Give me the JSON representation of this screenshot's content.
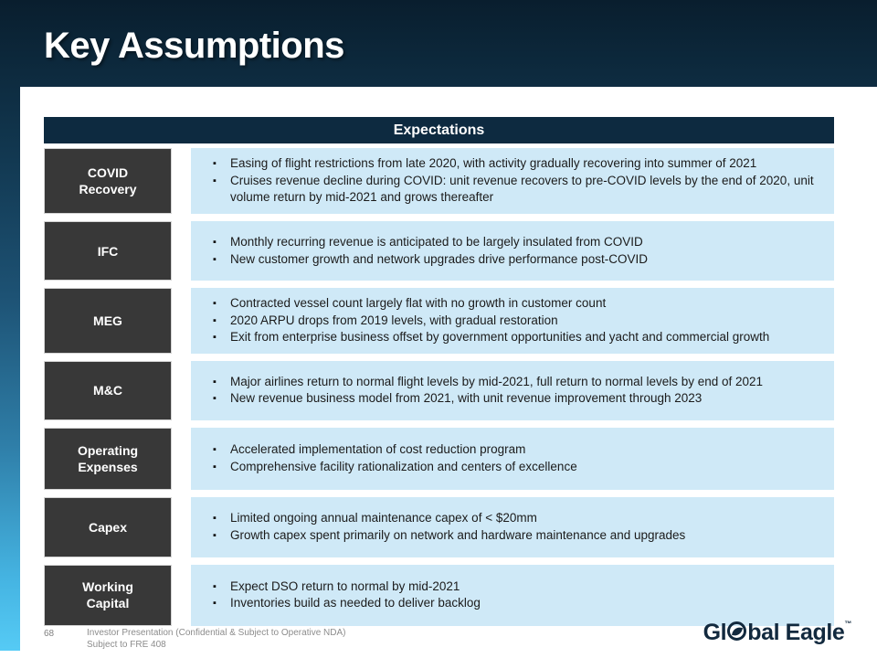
{
  "slide": {
    "title": "Key Assumptions"
  },
  "table": {
    "header": "Expectations",
    "rows": [
      {
        "label": "COVID Recovery",
        "bullets": [
          "Easing of flight restrictions from late 2020, with activity gradually recovering into summer of 2021",
          "Cruises revenue decline during COVID: unit revenue recovers to pre-COVID levels by the end of 2020, unit volume return by mid-2021 and grows thereafter"
        ]
      },
      {
        "label": "IFC",
        "bullets": [
          "Monthly recurring revenue is anticipated to be largely insulated from COVID",
          "New customer growth and network upgrades drive performance post-COVID"
        ]
      },
      {
        "label": "MEG",
        "bullets": [
          "Contracted vessel count largely flat with no growth in customer count",
          "2020 ARPU drops from 2019 levels, with gradual restoration",
          "Exit from enterprise business offset by government opportunities and yacht and commercial growth"
        ]
      },
      {
        "label": "M&C",
        "bullets": [
          "Major airlines return to normal flight levels by mid-2021, full return to normal levels by end of 2021",
          "New revenue business model from 2021, with unit revenue improvement through 2023"
        ]
      },
      {
        "label": "Operating Expenses",
        "bullets": [
          "Accelerated implementation of cost reduction program",
          "Comprehensive facility rationalization and centers of excellence"
        ]
      },
      {
        "label": "Capex",
        "bullets": [
          "Limited ongoing annual maintenance capex of < $20mm",
          "Growth capex spent primarily on network and hardware maintenance and upgrades"
        ]
      },
      {
        "label": "Working Capital",
        "bullets": [
          "Expect DSO return to normal by mid-2021",
          "Inventories build as needed to deliver backlog"
        ]
      }
    ]
  },
  "footer": {
    "page_number": "68",
    "disclaimer_line1": "Investor Presentation (Confidential & Subject to Operative NDA)",
    "disclaimer_line2": "Subject to FRE 408",
    "logo": {
      "part1": "Gl",
      "part2": "bal Eagle",
      "trademark": "™"
    }
  },
  "colors": {
    "header_bar": "#0d2a40",
    "category_box": "#383838",
    "detail_box": "#cfe9f7",
    "gradient_top": "#091e2e",
    "gradient_bottom": "#57cdf7",
    "logo_navy": "#12293e",
    "footer_gray": "#8c8c8c"
  }
}
